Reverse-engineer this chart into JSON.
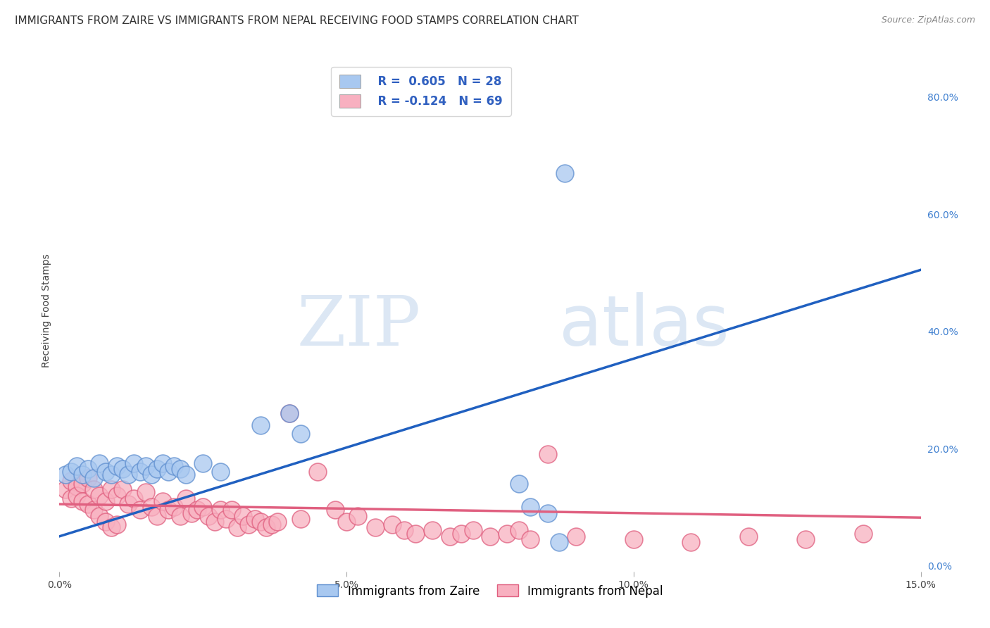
{
  "title": "IMMIGRANTS FROM ZAIRE VS IMMIGRANTS FROM NEPAL RECEIVING FOOD STAMPS CORRELATION CHART",
  "source": "Source: ZipAtlas.com",
  "ylabel": "Receiving Food Stamps",
  "xlim": [
    0.0,
    0.15
  ],
  "ylim": [
    -0.01,
    0.88
  ],
  "xticks": [
    0.0,
    0.05,
    0.1,
    0.15
  ],
  "xtick_labels": [
    "0.0%",
    "5.0%",
    "10.0%",
    "15.0%"
  ],
  "yticks_right": [
    0.0,
    0.2,
    0.4,
    0.6,
    0.8
  ],
  "ytick_labels_right": [
    "0.0%",
    "20.0%",
    "40.0%",
    "60.0%",
    "80.0%"
  ],
  "zaire_color": "#a8c8f0",
  "nepal_color": "#f8b0c0",
  "zaire_edge_color": "#6090d0",
  "nepal_edge_color": "#e06080",
  "zaire_line_color": "#2060c0",
  "nepal_line_color": "#e06080",
  "zaire_scatter": [
    [
      0.001,
      0.155
    ],
    [
      0.002,
      0.16
    ],
    [
      0.003,
      0.17
    ],
    [
      0.004,
      0.155
    ],
    [
      0.005,
      0.165
    ],
    [
      0.006,
      0.15
    ],
    [
      0.007,
      0.175
    ],
    [
      0.008,
      0.16
    ],
    [
      0.009,
      0.155
    ],
    [
      0.01,
      0.17
    ],
    [
      0.011,
      0.165
    ],
    [
      0.012,
      0.155
    ],
    [
      0.013,
      0.175
    ],
    [
      0.014,
      0.16
    ],
    [
      0.015,
      0.17
    ],
    [
      0.016,
      0.155
    ],
    [
      0.017,
      0.165
    ],
    [
      0.018,
      0.175
    ],
    [
      0.019,
      0.16
    ],
    [
      0.02,
      0.17
    ],
    [
      0.021,
      0.165
    ],
    [
      0.022,
      0.155
    ],
    [
      0.025,
      0.175
    ],
    [
      0.028,
      0.16
    ],
    [
      0.035,
      0.24
    ],
    [
      0.04,
      0.26
    ],
    [
      0.042,
      0.225
    ],
    [
      0.08,
      0.14
    ],
    [
      0.082,
      0.1
    ],
    [
      0.085,
      0.09
    ],
    [
      0.087,
      0.04
    ],
    [
      0.088,
      0.67
    ]
  ],
  "nepal_scatter": [
    [
      0.001,
      0.13
    ],
    [
      0.002,
      0.145
    ],
    [
      0.002,
      0.115
    ],
    [
      0.003,
      0.135
    ],
    [
      0.003,
      0.12
    ],
    [
      0.004,
      0.14
    ],
    [
      0.004,
      0.11
    ],
    [
      0.005,
      0.15
    ],
    [
      0.005,
      0.105
    ],
    [
      0.006,
      0.13
    ],
    [
      0.006,
      0.095
    ],
    [
      0.007,
      0.12
    ],
    [
      0.007,
      0.085
    ],
    [
      0.008,
      0.11
    ],
    [
      0.008,
      0.075
    ],
    [
      0.009,
      0.13
    ],
    [
      0.009,
      0.065
    ],
    [
      0.01,
      0.12
    ],
    [
      0.01,
      0.07
    ],
    [
      0.011,
      0.13
    ],
    [
      0.012,
      0.105
    ],
    [
      0.013,
      0.115
    ],
    [
      0.014,
      0.095
    ],
    [
      0.015,
      0.125
    ],
    [
      0.016,
      0.1
    ],
    [
      0.017,
      0.085
    ],
    [
      0.018,
      0.11
    ],
    [
      0.019,
      0.095
    ],
    [
      0.02,
      0.1
    ],
    [
      0.021,
      0.085
    ],
    [
      0.022,
      0.115
    ],
    [
      0.023,
      0.09
    ],
    [
      0.024,
      0.095
    ],
    [
      0.025,
      0.1
    ],
    [
      0.026,
      0.085
    ],
    [
      0.027,
      0.075
    ],
    [
      0.028,
      0.095
    ],
    [
      0.029,
      0.08
    ],
    [
      0.03,
      0.095
    ],
    [
      0.031,
      0.065
    ],
    [
      0.032,
      0.085
    ],
    [
      0.033,
      0.07
    ],
    [
      0.034,
      0.08
    ],
    [
      0.035,
      0.075
    ],
    [
      0.036,
      0.065
    ],
    [
      0.037,
      0.07
    ],
    [
      0.038,
      0.075
    ],
    [
      0.04,
      0.26
    ],
    [
      0.042,
      0.08
    ],
    [
      0.045,
      0.16
    ],
    [
      0.048,
      0.095
    ],
    [
      0.05,
      0.075
    ],
    [
      0.052,
      0.085
    ],
    [
      0.055,
      0.065
    ],
    [
      0.058,
      0.07
    ],
    [
      0.06,
      0.06
    ],
    [
      0.062,
      0.055
    ],
    [
      0.065,
      0.06
    ],
    [
      0.068,
      0.05
    ],
    [
      0.07,
      0.055
    ],
    [
      0.072,
      0.06
    ],
    [
      0.075,
      0.05
    ],
    [
      0.078,
      0.055
    ],
    [
      0.08,
      0.06
    ],
    [
      0.082,
      0.045
    ],
    [
      0.085,
      0.19
    ],
    [
      0.09,
      0.05
    ],
    [
      0.1,
      0.045
    ],
    [
      0.11,
      0.04
    ],
    [
      0.12,
      0.05
    ],
    [
      0.13,
      0.045
    ],
    [
      0.14,
      0.055
    ]
  ],
  "zaire_line": [
    [
      0.0,
      0.05
    ],
    [
      0.15,
      0.505
    ]
  ],
  "nepal_line": [
    [
      0.0,
      0.105
    ],
    [
      0.15,
      0.082
    ]
  ],
  "watermark_zip": "ZIP",
  "watermark_atlas": "atlas",
  "background_color": "#ffffff",
  "grid_color": "#cccccc",
  "title_fontsize": 11,
  "axis_label_fontsize": 10,
  "tick_fontsize": 10,
  "legend_fontsize": 12
}
